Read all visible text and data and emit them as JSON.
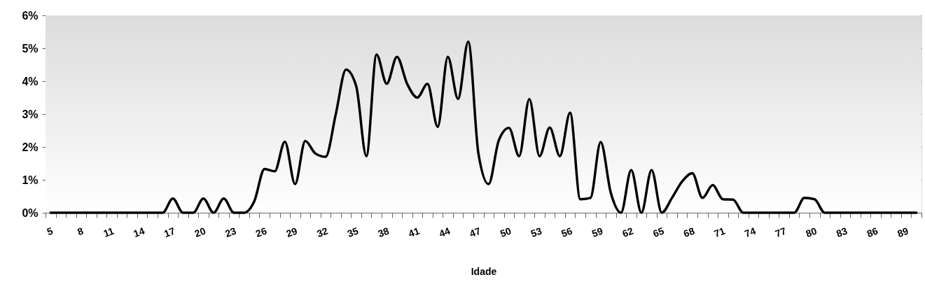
{
  "chart_data": {
    "type": "line",
    "xlabel": "Idade",
    "categories": [
      "5",
      null,
      null,
      "8",
      null,
      null,
      "11",
      null,
      null,
      "14",
      null,
      null,
      "17",
      null,
      null,
      "20",
      null,
      null,
      "23",
      null,
      null,
      "26",
      null,
      null,
      "29",
      null,
      null,
      "32",
      null,
      null,
      "35",
      null,
      null,
      "38",
      null,
      null,
      "41",
      null,
      null,
      "44",
      null,
      null,
      "47",
      null,
      null,
      "50",
      null,
      null,
      "53",
      null,
      null,
      "56",
      null,
      null,
      "59",
      null,
      null,
      "62",
      null,
      null,
      "65",
      null,
      null,
      "68",
      null,
      null,
      "71",
      null,
      null,
      "74",
      null,
      null,
      "77",
      null,
      null,
      "80",
      null,
      null,
      "83",
      null,
      null,
      "86",
      null,
      null,
      "89",
      null
    ],
    "series": [
      {
        "color": "#000000",
        "values": [
          0,
          0,
          0,
          0,
          0,
          0,
          0,
          0,
          0,
          0,
          0,
          0,
          0.43,
          0,
          0,
          0.43,
          0,
          0.43,
          0,
          0,
          0.35,
          1.33,
          1.26,
          2.16,
          0.87,
          2.18,
          1.8,
          1.7,
          3.0,
          4.35,
          3.85,
          1.72,
          4.81,
          3.92,
          4.74,
          3.92,
          3.5,
          3.92,
          2.61,
          4.74,
          3.46,
          5.2,
          1.8,
          0.87,
          2.2,
          2.58,
          1.72,
          3.46,
          1.72,
          2.59,
          1.72,
          3.04,
          0.41,
          0.45,
          2.15,
          0.6,
          0,
          1.3,
          0,
          1.3,
          0,
          0.45,
          0.95,
          1.2,
          0.45,
          0.84,
          0.41,
          0.4,
          0,
          0,
          0,
          0,
          0,
          0,
          0.45,
          0.41,
          0,
          0,
          0,
          0,
          0,
          0,
          0,
          0,
          0,
          0
        ]
      }
    ],
    "ylim": [
      0,
      6
    ],
    "yticks": [
      {
        "value": 0,
        "label": "0%"
      },
      {
        "value": 1,
        "label": "1%"
      },
      {
        "value": 2,
        "label": "2%"
      },
      {
        "value": 3,
        "label": "3%"
      },
      {
        "value": 4,
        "label": "4%"
      },
      {
        "value": 5,
        "label": "5%"
      },
      {
        "value": 6,
        "label": "6%"
      }
    ],
    "grid": "y",
    "marker": "none",
    "line_style": "solid"
  }
}
